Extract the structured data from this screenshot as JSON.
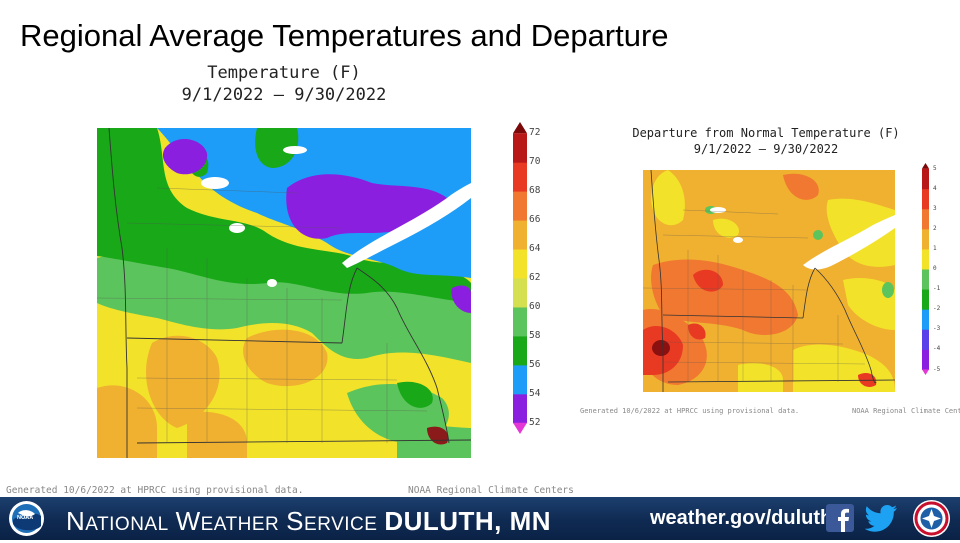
{
  "slide": {
    "title": "Regional Average Temperatures and Departure"
  },
  "left_map": {
    "title": "Temperature (F)",
    "dates": "9/1/2022 – 9/30/2022",
    "legend_levels": [
      "52",
      "54",
      "56",
      "58",
      "60",
      "62",
      "64",
      "66",
      "68",
      "70",
      "72"
    ],
    "legend_colors": [
      "#e536d6",
      "#8b1fe0",
      "#1d9df7",
      "#18a818",
      "#5cc45c",
      "#d4e050",
      "#f2e22a",
      "#f0b030",
      "#f07830",
      "#e83a22",
      "#b81818",
      "#7a0808"
    ],
    "credit_left": "Generated 10/6/2022 at HPRCC using provisional data.",
    "credit_right": "NOAA Regional Climate Centers"
  },
  "right_map": {
    "title": "Departure from Normal Temperature (F)",
    "dates": "9/1/2022 – 9/30/2022",
    "legend_levels": [
      "-5",
      "-4",
      "-3",
      "-2",
      "-1",
      "0",
      "1",
      "2",
      "3",
      "4",
      "5"
    ],
    "legend_colors": [
      "#e536d6",
      "#8b1fe0",
      "#5a40e8",
      "#1d9df7",
      "#18a818",
      "#5cc45c",
      "#f2e22a",
      "#f0b030",
      "#f07830",
      "#e83a22",
      "#b81818",
      "#7a0808"
    ],
    "credit_left": "Generated 10/6/2022 at HPRCC using provisional data.",
    "credit_right": "NOAA Regional Climate Centers"
  },
  "footer": {
    "org_first_letter": "N",
    "org_rest1": "ATIONAL",
    "org_w": "W",
    "org_rest2": "EATHER",
    "org_s": "S",
    "org_rest3": "ERVICE",
    "office": "DULUTH, MN",
    "url": "weather.gov/duluth",
    "noaa_logo": "NOAA",
    "colors": {
      "bar": "#123563",
      "facebook": "#3b5998",
      "twitter": "#1da1f2"
    }
  }
}
